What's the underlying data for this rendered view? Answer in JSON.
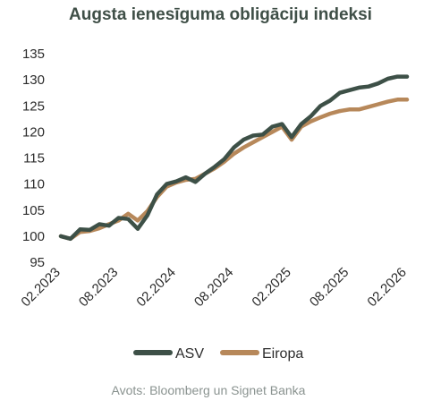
{
  "chart_data": {
    "type": "line",
    "title": "Augsta ienesīguma obligāciju indeksi",
    "xlabel": "",
    "ylabel": "",
    "ylim": [
      95,
      135
    ],
    "yticks": [
      95,
      100,
      105,
      110,
      115,
      120,
      125,
      130,
      135
    ],
    "x_tick_labels": [
      "02.2023",
      "08.2023",
      "02.2024",
      "08.2024",
      "02.2025",
      "08.2025",
      "02.2026"
    ],
    "x_range": [
      "02.2023",
      "02.2026"
    ],
    "grid": false,
    "legend_position": "bottom",
    "x": [
      "02.2023",
      "03.2023",
      "04.2023",
      "05.2023",
      "06.2023",
      "07.2023",
      "08.2023",
      "09.2023",
      "10.2023",
      "11.2023",
      "12.2023",
      "01.2024",
      "02.2024",
      "03.2024",
      "04.2024",
      "05.2024",
      "06.2024",
      "07.2024",
      "08.2024",
      "09.2024",
      "10.2024",
      "11.2024",
      "12.2024",
      "01.2025",
      "02.2025",
      "03.2025",
      "04.2025",
      "05.2025",
      "06.2025",
      "07.2025",
      "08.2025",
      "09.2025",
      "10.2025",
      "11.2025",
      "12.2025",
      "01.2026",
      "02.2026"
    ],
    "series": [
      {
        "name": "ASV",
        "color": "#3d5047",
        "values": [
          100.0,
          99.5,
          101.3,
          101.2,
          102.3,
          102.0,
          103.5,
          103.3,
          101.4,
          104.0,
          108.0,
          110.0,
          110.5,
          111.3,
          110.4,
          112.0,
          113.3,
          114.8,
          117.0,
          118.5,
          119.3,
          119.5,
          121.0,
          121.5,
          119.0,
          121.5,
          123.0,
          125.0,
          126.0,
          127.5,
          128.0,
          128.5,
          128.7,
          129.3,
          130.2,
          130.6,
          130.6
        ]
      },
      {
        "name": "Eiropa",
        "color": "#b7885a",
        "values": [
          100.0,
          99.5,
          100.8,
          101.0,
          101.5,
          102.3,
          103.0,
          104.3,
          103.0,
          104.8,
          107.5,
          109.5,
          110.3,
          110.8,
          111.0,
          112.0,
          113.0,
          114.3,
          115.8,
          117.0,
          118.0,
          119.0,
          120.0,
          121.0,
          118.5,
          121.0,
          122.0,
          122.8,
          123.5,
          124.0,
          124.3,
          124.3,
          124.8,
          125.3,
          125.8,
          126.2,
          126.2
        ]
      }
    ]
  },
  "source": "Avots: Bloomberg un Signet Banka"
}
